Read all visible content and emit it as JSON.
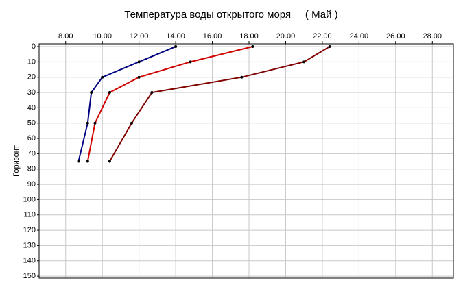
{
  "chart_data": {
    "type": "line",
    "title": "Температура воды открытого моря     ( Май )",
    "y_label": "Горизонт",
    "y": [
      0,
      10,
      20,
      30,
      50,
      75
    ],
    "series": [
      {
        "color": "#000080",
        "values": [
          14.0,
          12.0,
          10.0,
          9.4,
          9.2,
          8.7
        ]
      },
      {
        "color": "#d00000",
        "values": [
          18.2,
          14.8,
          12.0,
          10.4,
          9.6,
          9.2
        ]
      },
      {
        "color": "#800000",
        "values": [
          22.4,
          21.0,
          17.6,
          12.7,
          11.6,
          10.4
        ]
      }
    ],
    "xlim": [
      6.55,
      29.15
    ],
    "xticks": [
      {
        "value": 8,
        "label": "8.00"
      },
      {
        "value": 10,
        "label": "10.00"
      },
      {
        "value": 12,
        "label": "12.00"
      },
      {
        "value": 14,
        "label": "14.00"
      },
      {
        "value": 16,
        "label": "16.00"
      },
      {
        "value": 18,
        "label": "18.00"
      },
      {
        "value": 20,
        "label": "20.00"
      },
      {
        "value": 22,
        "label": "22.00"
      },
      {
        "value": 24,
        "label": "24.00"
      },
      {
        "value": 26,
        "label": "26.00"
      },
      {
        "value": 28,
        "label": "28.00"
      }
    ],
    "ylim": [
      -1.8,
      151.3
    ],
    "yticks": [
      0,
      10,
      20,
      30,
      40,
      50,
      60,
      70,
      80,
      90,
      100,
      110,
      120,
      130,
      140,
      150
    ],
    "y_inverted": true,
    "grid": true
  }
}
